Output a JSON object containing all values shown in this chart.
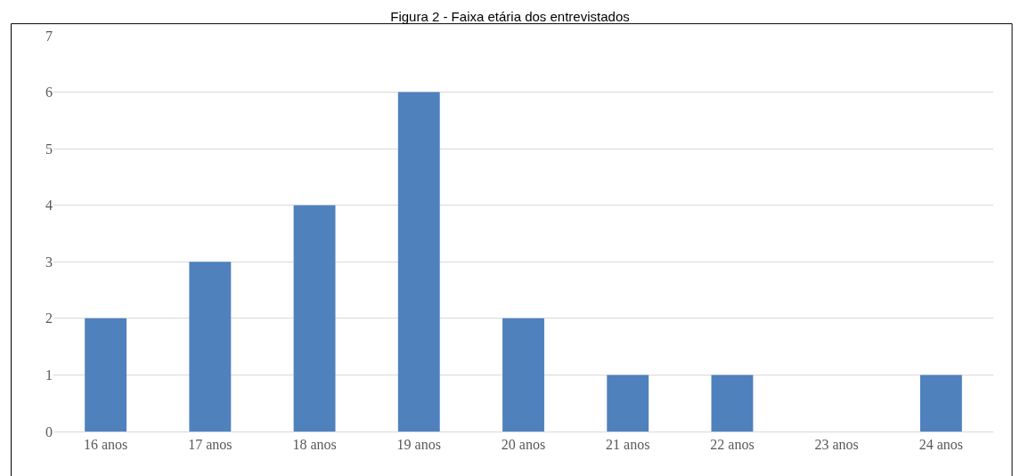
{
  "chart_data": {
    "type": "bar",
    "title": "Figura 2 - Faixa etária dos entrevistados",
    "categories": [
      "16 anos",
      "17 anos",
      "18 anos",
      "19 anos",
      "20 anos",
      "21 anos",
      "22 anos",
      "23 anos",
      "24 anos"
    ],
    "values": [
      2,
      3,
      4,
      6,
      2,
      1,
      1,
      0,
      1
    ],
    "color": "#4f81bd",
    "ylim": [
      0,
      7
    ],
    "yticks": [
      0,
      1,
      2,
      3,
      4,
      5,
      6,
      7
    ],
    "grid": "y"
  }
}
